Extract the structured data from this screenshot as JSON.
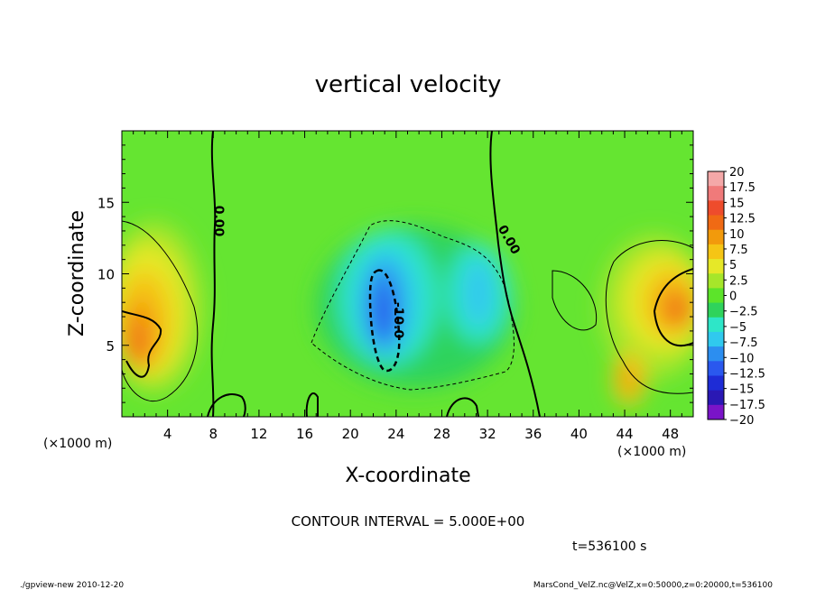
{
  "chart_data": {
    "type": "heatmap",
    "title": "vertical velocity",
    "xlabel": "X-coordinate",
    "ylabel": "Z-coordinate",
    "x_unit": "(×1000 m)",
    "z_unit": "(×1000 m)",
    "xlim": [
      0,
      50
    ],
    "ylim": [
      0,
      20
    ],
    "x_ticks": [
      4,
      8,
      12,
      16,
      20,
      24,
      28,
      32,
      36,
      40,
      44,
      48
    ],
    "y_ticks": [
      5,
      10,
      15
    ],
    "colorbar": {
      "labels": [
        "20",
        "17.5",
        "15",
        "12.5",
        "10",
        "7.5",
        "5",
        "2.5",
        "0",
        "−2.5",
        "−5",
        "−7.5",
        "−10",
        "−12.5",
        "−15",
        "−17.5",
        "−20"
      ],
      "colors": [
        "#f4a8a8",
        "#f07a7a",
        "#ee4c2c",
        "#f06a14",
        "#f29a0c",
        "#f5c515",
        "#e6e828",
        "#a6e62a",
        "#5ce42a",
        "#2fd35c",
        "#2ee6c8",
        "#30c9ee",
        "#2c8ef0",
        "#2a58ee",
        "#1e2cd6",
        "#2a18b4",
        "#7a14c8"
      ]
    },
    "contour_labels": [
      "0.00",
      "0.00",
      "-10.0"
    ],
    "features": [
      {
        "kind": "updraft",
        "x": 1.5,
        "z": 6.5,
        "w": 12.5
      },
      {
        "kind": "updraft",
        "x": 48,
        "z": 8,
        "w": 12.5
      },
      {
        "kind": "downdraft",
        "x": 22.5,
        "z": 7.5,
        "w": -12.5
      },
      {
        "kind": "downdraft",
        "x": 30.5,
        "z": 8.5,
        "w": -7.5
      }
    ]
  },
  "footer": {
    "contour_interval": "CONTOUR INTERVAL = 5.000E+00",
    "time": "t=536100 s",
    "program": "./gpview-new 2010-12-20",
    "source": "MarsCond_VelZ.nc@VelZ,x=0:50000,z=0:20000,t=536100"
  }
}
